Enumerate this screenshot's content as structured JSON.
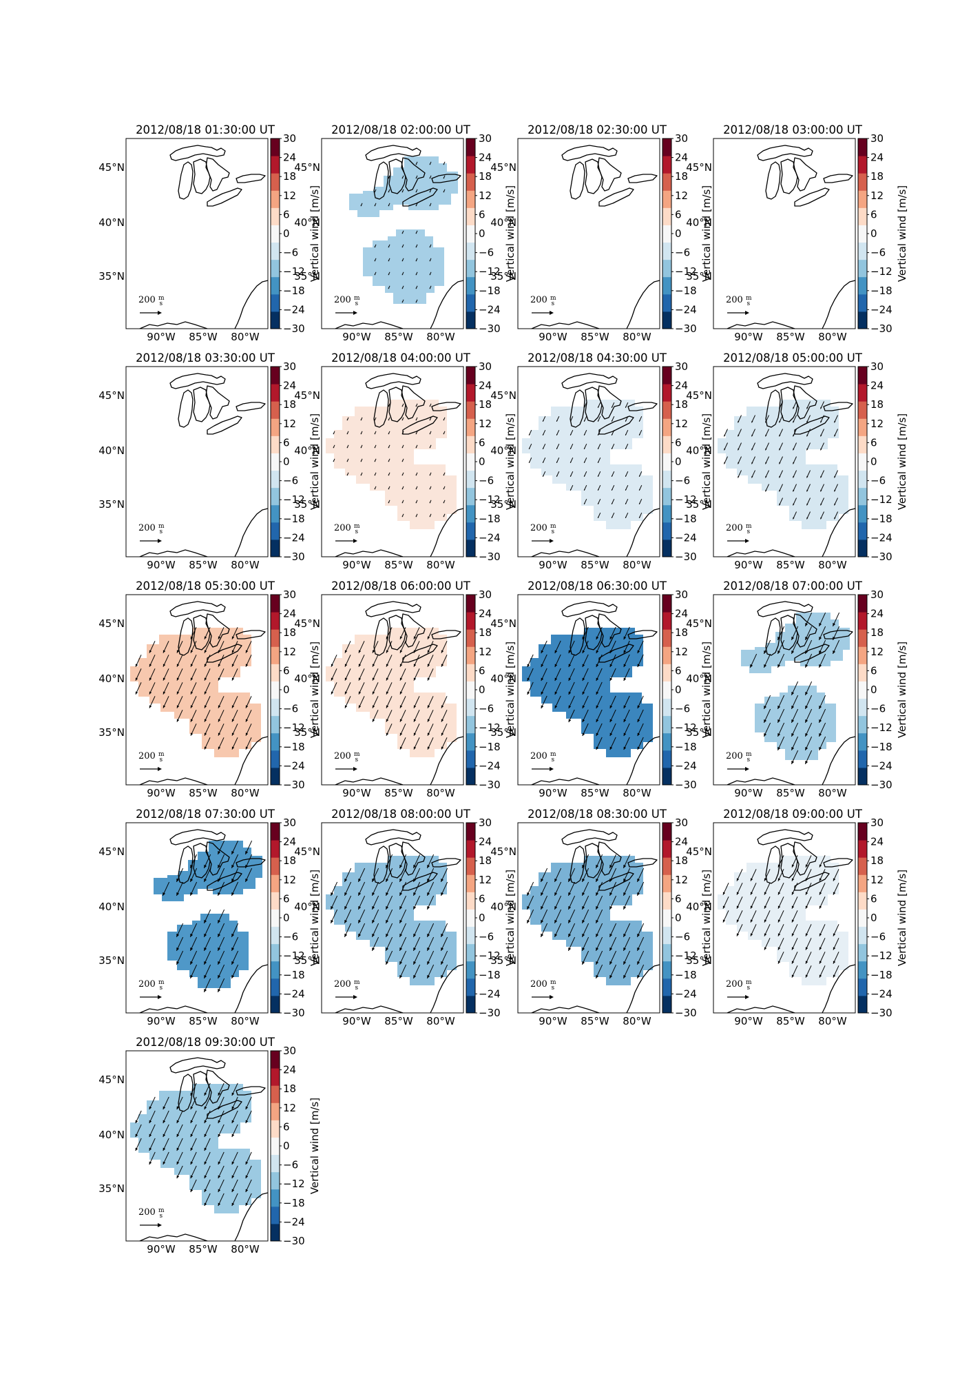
{
  "figure": {
    "colorbar_label": "Vertical wind [m/s]",
    "colorbar_ticks": [
      30,
      24,
      18,
      12,
      6,
      0,
      -6,
      -12,
      -18,
      -24,
      -30
    ],
    "lat_ticks": [
      "45°N",
      "40°N",
      "35°N"
    ],
    "lon_ticks": [
      "90°W",
      "85°W",
      "80°W"
    ],
    "quiver_key_value": "200",
    "quiver_key_unit_num": "m",
    "quiver_key_unit_den": "s",
    "colormap": [
      "#053061",
      "#2166ac",
      "#4393c3",
      "#92c5de",
      "#d1e5f0",
      "#f7f7f7",
      "#fddbc7",
      "#f4a582",
      "#d6604d",
      "#b2182b",
      "#67001f"
    ]
  },
  "panels": [
    {
      "title": "2012/08/18 01:30:00 UT",
      "region": "none",
      "color": null,
      "arrows": false
    },
    {
      "title": "2012/08/18 02:00:00 UT",
      "region": "split",
      "color": "#a6cfe6",
      "arrows": true,
      "arrow_scale": 0.05
    },
    {
      "title": "2012/08/18 02:30:00 UT",
      "region": "none",
      "color": null,
      "arrows": false
    },
    {
      "title": "2012/08/18 03:00:00 UT",
      "region": "none",
      "color": null,
      "arrows": false
    },
    {
      "title": "2012/08/18 03:30:00 UT",
      "region": "none",
      "color": null,
      "arrows": false
    },
    {
      "title": "2012/08/18 04:00:00 UT",
      "region": "full",
      "color": "#fae5da",
      "arrows": true,
      "arrow_scale": 0.05
    },
    {
      "title": "2012/08/18 04:30:00 UT",
      "region": "full",
      "color": "#dceaf3",
      "arrows": true,
      "arrow_scale": 0.25
    },
    {
      "title": "2012/08/18 05:00:00 UT",
      "region": "full",
      "color": "#d6e7f1",
      "arrows": true,
      "arrow_scale": 0.45
    },
    {
      "title": "2012/08/18 05:30:00 UT",
      "region": "full",
      "color": "#f7c8ae",
      "arrows": true,
      "arrow_scale": 0.85
    },
    {
      "title": "2012/08/18 06:00:00 UT",
      "region": "full",
      "color": "#fbe2d4",
      "arrows": true,
      "arrow_scale": 0.85
    },
    {
      "title": "2012/08/18 06:30:00 UT",
      "region": "full",
      "color": "#3b86be",
      "arrows": true,
      "arrow_scale": 0.9
    },
    {
      "title": "2012/08/18 07:00:00 UT",
      "region": "split",
      "color": "#a2cce3",
      "arrows": true,
      "arrow_scale": 1.0
    },
    {
      "title": "2012/08/18 07:30:00 UT",
      "region": "split",
      "color": "#4f98c8",
      "arrows": true,
      "arrow_scale": 1.0
    },
    {
      "title": "2012/08/18 08:00:00 UT",
      "region": "full",
      "color": "#8fc0dd",
      "arrows": true,
      "arrow_scale": 1.0
    },
    {
      "title": "2012/08/18 08:30:00 UT",
      "region": "full",
      "color": "#7ab2d5",
      "arrows": true,
      "arrow_scale": 1.0
    },
    {
      "title": "2012/08/18 09:00:00 UT",
      "region": "full",
      "color": "#e6eff5",
      "arrows": true,
      "arrow_scale": 0.85
    },
    {
      "title": "2012/08/18 09:30:00 UT",
      "region": "full",
      "color": "#9ccae2",
      "arrows": true,
      "arrow_scale": 0.9
    }
  ]
}
